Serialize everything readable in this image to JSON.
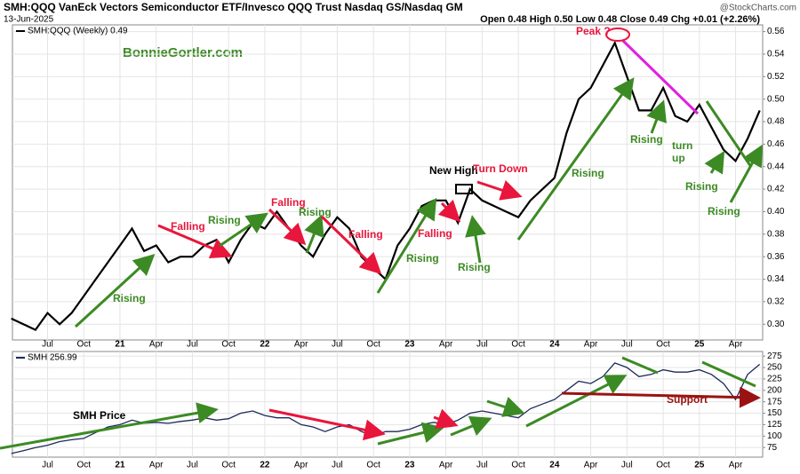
{
  "chart_data": [
    {
      "type": "line",
      "title": "SMH:QQQ VanEck Vectors Semiconductor ETF/Invesco QQQ Trust Nasdaq GS/Nasdaq GM",
      "subtitle": "13-Jun-2025",
      "quote": "Open 0.48  High 0.50  Low 0.48  Close 0.49  Chg +0.01 (+2.26%)",
      "source": "@StockCharts.com",
      "watermark": "BonnieGortler.com",
      "x": [
        "2020-04",
        "2020-05",
        "2020-06",
        "2020-07",
        "2020-08",
        "2020-09",
        "2020-10",
        "2020-11",
        "2020-12",
        "2021-01",
        "2021-02",
        "2021-03",
        "2021-04",
        "2021-05",
        "2021-06",
        "2021-07",
        "2021-08",
        "2021-09",
        "2021-10",
        "2021-11",
        "2021-12",
        "2022-01",
        "2022-02",
        "2022-03",
        "2022-04",
        "2022-05",
        "2022-06",
        "2022-07",
        "2022-08",
        "2022-09",
        "2022-10",
        "2022-11",
        "2022-12",
        "2023-01",
        "2023-02",
        "2023-03",
        "2023-04",
        "2023-05",
        "2023-06",
        "2023-07",
        "2023-08",
        "2023-09",
        "2023-10",
        "2023-11",
        "2023-12",
        "2024-01",
        "2024-02",
        "2024-03",
        "2024-04",
        "2024-05",
        "2024-06",
        "2024-07",
        "2024-08",
        "2024-09",
        "2024-10",
        "2024-11",
        "2024-12",
        "2025-01",
        "2025-02",
        "2025-03",
        "2025-04",
        "2025-05",
        "2025-06"
      ],
      "series": [
        {
          "name": "SMH:QQQ (Weekly) 0.49",
          "color": "#000000",
          "values": [
            0.305,
            0.3,
            0.295,
            0.31,
            0.3,
            0.31,
            0.325,
            0.34,
            0.355,
            0.37,
            0.385,
            0.365,
            0.37,
            0.355,
            0.36,
            0.36,
            0.37,
            0.375,
            0.355,
            0.375,
            0.39,
            0.385,
            0.4,
            0.385,
            0.37,
            0.36,
            0.38,
            0.395,
            0.385,
            0.36,
            0.35,
            0.34,
            0.37,
            0.385,
            0.405,
            0.41,
            0.41,
            0.39,
            0.42,
            0.41,
            0.405,
            0.4,
            0.395,
            0.41,
            0.42,
            0.43,
            0.47,
            0.5,
            0.51,
            0.53,
            0.55,
            0.52,
            0.49,
            0.49,
            0.51,
            0.485,
            0.48,
            0.495,
            0.475,
            0.455,
            0.445,
            0.465,
            0.49
          ]
        }
      ],
      "xticks": [
        {
          "value": "2020-07",
          "label": "Jul"
        },
        {
          "value": "2020-10",
          "label": "Oct"
        },
        {
          "value": "2021-01",
          "label": "21"
        },
        {
          "value": "2021-04",
          "label": "Apr"
        },
        {
          "value": "2021-07",
          "label": "Jul"
        },
        {
          "value": "2021-10",
          "label": "Oct"
        },
        {
          "value": "2022-01",
          "label": "22"
        },
        {
          "value": "2022-04",
          "label": "Apr"
        },
        {
          "value": "2022-07",
          "label": "Jul"
        },
        {
          "value": "2022-10",
          "label": "Oct"
        },
        {
          "value": "2023-01",
          "label": "23"
        },
        {
          "value": "2023-04",
          "label": "Apr"
        },
        {
          "value": "2023-07",
          "label": "Jul"
        },
        {
          "value": "2023-10",
          "label": "Oct"
        },
        {
          "value": "2024-01",
          "label": "24"
        },
        {
          "value": "2024-04",
          "label": "Apr"
        },
        {
          "value": "2024-07",
          "label": "Jul"
        },
        {
          "value": "2024-10",
          "label": "Oct"
        },
        {
          "value": "2025-01",
          "label": "25"
        },
        {
          "value": "2025-04",
          "label": "Apr"
        }
      ],
      "ylim": [
        0.286,
        0.566
      ],
      "yticks": [
        {
          "value": 0.3,
          "label": "0.30"
        },
        0.32,
        0.34,
        0.36,
        0.38,
        {
          "value": 0.4,
          "label": "0.40"
        },
        0.42,
        0.44,
        0.46,
        0.48,
        {
          "value": 0.5,
          "label": "0.50"
        },
        0.52,
        0.54,
        0.56
      ],
      "grid": true,
      "annotations": [
        "Rising",
        "Falling",
        "Rising",
        "Falling",
        "Rising",
        "Falling",
        "Rising",
        "New High",
        "Falling",
        "Turn Down",
        "Rising",
        "Rising",
        "Peak ?",
        "Rising",
        "turn",
        "up",
        "Rising",
        "Rising"
      ]
    },
    {
      "type": "line",
      "x": [
        "2020-04",
        "2020-05",
        "2020-06",
        "2020-07",
        "2020-08",
        "2020-09",
        "2020-10",
        "2020-11",
        "2020-12",
        "2021-01",
        "2021-02",
        "2021-03",
        "2021-04",
        "2021-05",
        "2021-06",
        "2021-07",
        "2021-08",
        "2021-09",
        "2021-10",
        "2021-11",
        "2021-12",
        "2022-01",
        "2022-02",
        "2022-03",
        "2022-04",
        "2022-05",
        "2022-06",
        "2022-07",
        "2022-08",
        "2022-09",
        "2022-10",
        "2022-11",
        "2022-12",
        "2023-01",
        "2023-02",
        "2023-03",
        "2023-04",
        "2023-05",
        "2023-06",
        "2023-07",
        "2023-08",
        "2023-09",
        "2023-10",
        "2023-11",
        "2023-12",
        "2024-01",
        "2024-02",
        "2024-03",
        "2024-04",
        "2024-05",
        "2024-06",
        "2024-07",
        "2024-08",
        "2024-09",
        "2024-10",
        "2024-11",
        "2024-12",
        "2025-01",
        "2025-02",
        "2025-03",
        "2025-04",
        "2025-05",
        "2025-06"
      ],
      "series": [
        {
          "name": "SMH 256.99",
          "color": "#1c2a5a",
          "values": [
            62,
            68,
            75,
            80,
            88,
            92,
            95,
            108,
            120,
            125,
            135,
            128,
            130,
            128,
            132,
            135,
            140,
            135,
            138,
            150,
            155,
            145,
            140,
            140,
            125,
            120,
            110,
            120,
            125,
            110,
            100,
            110,
            110,
            115,
            125,
            130,
            125,
            135,
            150,
            155,
            150,
            145,
            140,
            160,
            170,
            180,
            200,
            220,
            215,
            230,
            260,
            250,
            230,
            235,
            245,
            240,
            240,
            245,
            235,
            215,
            180,
            235,
            257
          ]
        }
      ],
      "xticks": [
        {
          "value": "2020-07",
          "label": "Jul"
        },
        {
          "value": "2020-10",
          "label": "Oct"
        },
        {
          "value": "2021-01",
          "label": "21"
        },
        {
          "value": "2021-04",
          "label": "Apr"
        },
        {
          "value": "2021-07",
          "label": "Jul"
        },
        {
          "value": "2021-10",
          "label": "Oct"
        },
        {
          "value": "2022-01",
          "label": "22"
        },
        {
          "value": "2022-04",
          "label": "Apr"
        },
        {
          "value": "2022-07",
          "label": "Jul"
        },
        {
          "value": "2022-10",
          "label": "Oct"
        },
        {
          "value": "2023-01",
          "label": "23"
        },
        {
          "value": "2023-04",
          "label": "Apr"
        },
        {
          "value": "2023-07",
          "label": "Jul"
        },
        {
          "value": "2023-10",
          "label": "Oct"
        },
        {
          "value": "2024-01",
          "label": "24"
        },
        {
          "value": "2024-04",
          "label": "Apr"
        },
        {
          "value": "2024-07",
          "label": "Jul"
        },
        {
          "value": "2024-10",
          "label": "Oct"
        },
        {
          "value": "2025-01",
          "label": "25"
        },
        {
          "value": "2025-04",
          "label": "Apr"
        }
      ],
      "ylim": [
        54,
        285
      ],
      "yticks": [
        75,
        100,
        125,
        150,
        175,
        200,
        225,
        250,
        275
      ],
      "grid": true,
      "annotations": [
        "SMH Price",
        "Support"
      ]
    }
  ]
}
